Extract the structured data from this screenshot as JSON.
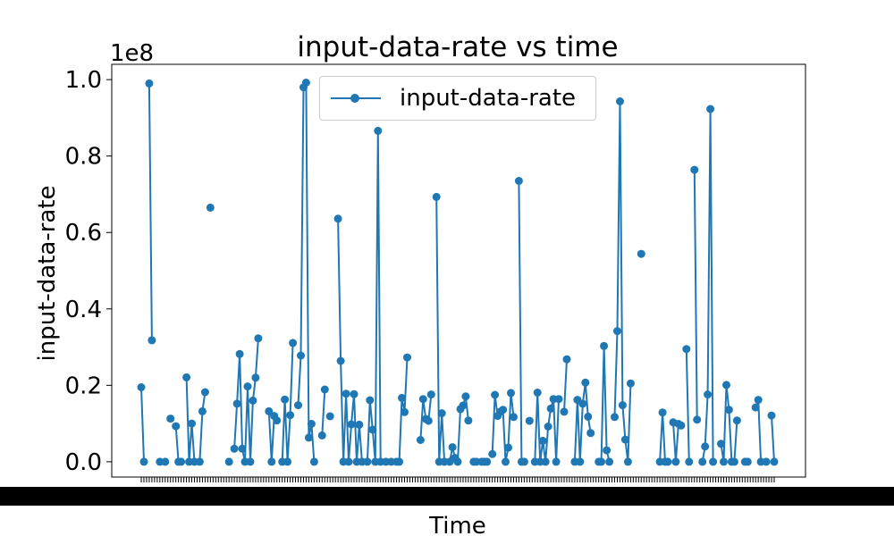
{
  "chart_data": {
    "type": "line",
    "title": "input-data-rate vs time",
    "xlabel": "Time",
    "ylabel": "input-data-rate",
    "y_offset_label": "1e8",
    "yticks": [
      "0.0",
      "0.2",
      "0.4",
      "0.6",
      "0.8",
      "1.0"
    ],
    "ylim": [
      -0.04,
      1.04
    ],
    "y_scale_multiplier": 100000000,
    "grid": false,
    "legend_position": "upper center",
    "series_color": "#1f77b4",
    "series": [
      {
        "name": "input-data-rate",
        "values": [
          0.195,
          0,
          null,
          0.99,
          0.318,
          null,
          null,
          0,
          null,
          0,
          null,
          0.113,
          null,
          0.093,
          0,
          0,
          null,
          0.221,
          0,
          0.1,
          0,
          null,
          0,
          0.132,
          0.182,
          null,
          0.665,
          null,
          null,
          null,
          null,
          null,
          null,
          0,
          null,
          0.034,
          0.152,
          0.282,
          0.034,
          0,
          0.197,
          0,
          0.16,
          0.22,
          0.323,
          null,
          null,
          null,
          0.132,
          0,
          0.12,
          0.108,
          null,
          0,
          0.163,
          0,
          0.122,
          0.311,
          null,
          0.148,
          0.278,
          0.98,
          0.992,
          0.063,
          0.099,
          0,
          null,
          null,
          0.069,
          0.189,
          null,
          0.119,
          null,
          null,
          0.636,
          0.264,
          0,
          0.178,
          0,
          0.098,
          0.177,
          0,
          0.097,
          0,
          null,
          0,
          0.161,
          0.084,
          0,
          0.866,
          0,
          null,
          0,
          null,
          0,
          null,
          0,
          0,
          0.167,
          0.13,
          0.273,
          null,
          null,
          null,
          null,
          0.057,
          0.164,
          0.112,
          0.107,
          0.176,
          null,
          0.693,
          0,
          0.127,
          0,
          null,
          0,
          0.038,
          0.01,
          0,
          0.138,
          0.147,
          0.171,
          0.108,
          null,
          0,
          0,
          null,
          0,
          0,
          0,
          null,
          0.02,
          0.175,
          0.12,
          0.131,
          0.136,
          0,
          0.037,
          0.18,
          0.117,
          null,
          0.735,
          0,
          0,
          null,
          0.107,
          null,
          0,
          0.181,
          0,
          0.055,
          0,
          0.092,
          0.139,
          0.164,
          0,
          0.164,
          null,
          0.131,
          0.268,
          null,
          null,
          0,
          0.162,
          0,
          0.152,
          0.207,
          0.118,
          0.075,
          null,
          null,
          0,
          0,
          0.303,
          0.03,
          0,
          null,
          0.117,
          0.342,
          0.943,
          0.148,
          0.058,
          0,
          0.205,
          null,
          null,
          null,
          0.544,
          null,
          null,
          null,
          null,
          null,
          null,
          0,
          0.129,
          0,
          0,
          null,
          0.103,
          0,
          0.099,
          0.095,
          null,
          0.295,
          0,
          null,
          0.764,
          0.11,
          null,
          0,
          0.04,
          0.176,
          0.923,
          0,
          null,
          null,
          0.047,
          0,
          0.201,
          0.136,
          0,
          0,
          0.108,
          null,
          null,
          0,
          0,
          null,
          null,
          0.142,
          0.162,
          0,
          null,
          0,
          null,
          0.121,
          0
        ]
      }
    ]
  }
}
